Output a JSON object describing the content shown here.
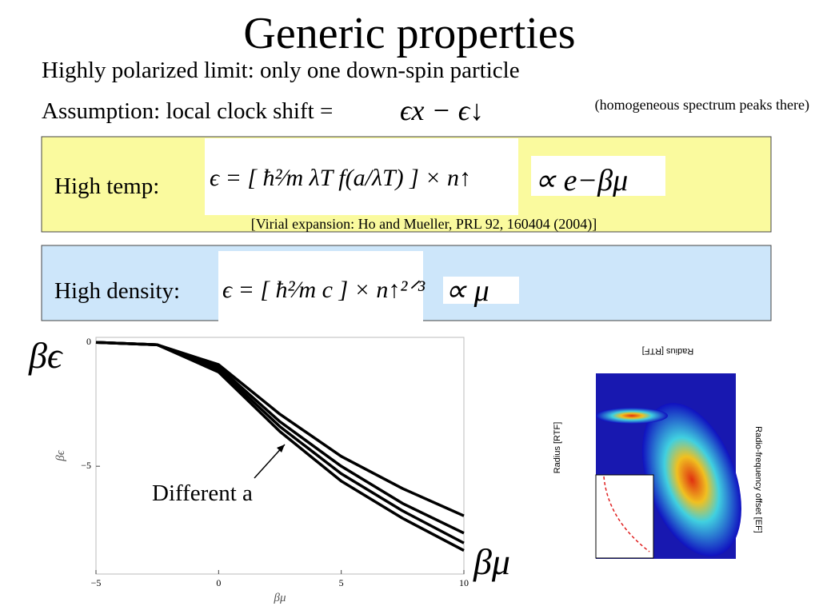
{
  "title": "Generic properties",
  "lines": [
    "Highly polarized limit: only one down-spin particle",
    "Assumption: local clock shift ="
  ],
  "shift_formula": "ϵx − ϵ↓",
  "note": "(homogeneous spectrum peaks there)",
  "boxes": [
    {
      "label": "High temp:",
      "formula": "ϵ = [ ħ²⁄m λT f(a/λT) ] × n↑",
      "scaling": "∝ e−βμ",
      "citation": "[Virial expansion: Ho and Mueller, PRL 92, 160404 (2004)]"
    },
    {
      "label": "High density:",
      "formula": "ϵ = [ ħ²⁄m c ] × n↑²ᐟ³",
      "scaling": "∝ μ"
    }
  ],
  "chart_data": {
    "type": "line",
    "x_label": "βμ",
    "y_label": "βϵ",
    "annotation": "Different a",
    "x": [
      -5,
      -2.5,
      0,
      2.5,
      5,
      7.5,
      10
    ],
    "series": [
      {
        "color": "#000000",
        "values": [
          0,
          -0.1,
          -0.9,
          -2.9,
          -4.6,
          -5.9,
          -7.0
        ]
      },
      {
        "color": "#000000",
        "values": [
          0,
          -0.1,
          -1.0,
          -3.2,
          -5.0,
          -6.5,
          -7.7
        ]
      },
      {
        "color": "#000000",
        "values": [
          0,
          -0.1,
          -1.1,
          -3.4,
          -5.3,
          -6.8,
          -8.1
        ]
      },
      {
        "color": "#000000",
        "values": [
          0,
          -0.1,
          -1.2,
          -3.6,
          -5.6,
          -7.1,
          -8.4
        ]
      }
    ],
    "xlim": [
      -5,
      10
    ],
    "ylim": [
      -9.35,
      0.2
    ],
    "xticks": [
      {
        "value": -5,
        "label": "−5"
      },
      0,
      5,
      10
    ],
    "yticks": [
      0,
      {
        "value": -5,
        "label": "−5"
      }
    ]
  },
  "inset": {
    "x_label": "Radius [RTF]",
    "y_label": "Radio-frequency offset [EF]"
  }
}
